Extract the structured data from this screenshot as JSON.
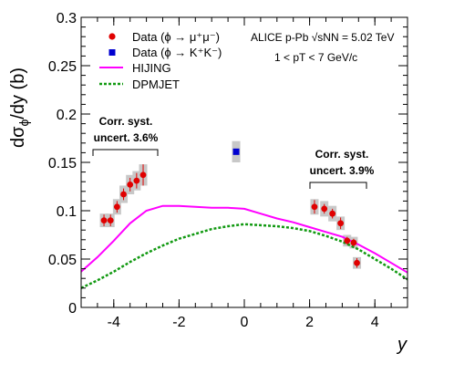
{
  "chart_data": {
    "type": "scatter",
    "ylabel_parts": {
      "main": "dσ",
      "sub": "ϕ",
      "tail": "/dy (b)"
    },
    "xlabel": "y",
    "xlim": [
      -5,
      5
    ],
    "ylim": [
      0,
      0.3
    ],
    "x_ticks": [
      -4,
      -2,
      0,
      2,
      4
    ],
    "x_tick_labels": [
      "-4",
      "-2",
      "0",
      "2",
      "4"
    ],
    "y_ticks": [
      0,
      0.05,
      0.1,
      0.15,
      0.2,
      0.25,
      0.3
    ],
    "y_tick_labels": [
      "0",
      "0.05",
      "0.1",
      "0.15",
      "0.2",
      "0.25",
      "0.3"
    ],
    "grid": false,
    "legend_position": "top-left",
    "info_text": {
      "line1": "ALICE p-Pb √sNN = 5.02 TeV",
      "line2": "1 < pT < 7 GeV/c"
    },
    "annotations": [
      {
        "line1": "Corr. syst.",
        "line2": "uncert. 3.6%",
        "x_range": [
          -4.6,
          -2.9
        ]
      },
      {
        "line1": "Corr. syst.",
        "line2": "uncert. 3.9%",
        "x_range": [
          2.0,
          3.7
        ]
      }
    ],
    "series": [
      {
        "name": "Data (ϕ → μ⁺μ⁻)",
        "kind": "points",
        "marker": "circle",
        "color": "#e00000",
        "x": [
          -4.3,
          -4.1,
          -3.9,
          -3.7,
          -3.5,
          -3.3,
          -3.1,
          2.15,
          2.45,
          2.7,
          2.95,
          3.15,
          3.35,
          3.45
        ],
        "y": [
          0.09,
          0.09,
          0.104,
          0.117,
          0.127,
          0.131,
          0.137,
          0.104,
          0.102,
          0.097,
          0.087,
          0.069,
          0.067,
          0.046
        ],
        "stat_err": [
          0.006,
          0.006,
          0.006,
          0.006,
          0.007,
          0.008,
          0.011,
          0.007,
          0.005,
          0.005,
          0.006,
          0.004,
          0.004,
          0.005
        ],
        "syst_err": [
          0.007,
          0.007,
          0.008,
          0.009,
          0.01,
          0.01,
          0.011,
          0.008,
          0.008,
          0.008,
          0.007,
          0.006,
          0.006,
          0.006
        ]
      },
      {
        "name": "Data (ϕ → K⁺K⁻)",
        "kind": "points",
        "marker": "square",
        "color": "#0000d0",
        "x": [
          -0.25
        ],
        "y": [
          0.161
        ],
        "stat_err": [
          0.002
        ],
        "syst_err": [
          0.011
        ]
      },
      {
        "name": "HIJING",
        "kind": "line",
        "style": "solid",
        "color": "#ff00ff",
        "x": [
          -5,
          -4.5,
          -4,
          -3.5,
          -3,
          -2.5,
          -2,
          -1.5,
          -1,
          -0.5,
          0,
          0.5,
          1,
          1.5,
          2,
          2.5,
          3,
          3.5,
          4,
          4.5,
          5
        ],
        "y": [
          0.037,
          0.052,
          0.069,
          0.087,
          0.1,
          0.105,
          0.105,
          0.104,
          0.103,
          0.103,
          0.102,
          0.097,
          0.092,
          0.088,
          0.083,
          0.078,
          0.073,
          0.065,
          0.056,
          0.046,
          0.036
        ]
      },
      {
        "name": "DPMJET",
        "kind": "line",
        "style": "dashed",
        "color": "#119911",
        "x": [
          -5,
          -4.5,
          -4,
          -3.5,
          -3,
          -2.5,
          -2,
          -1.5,
          -1,
          -0.5,
          0,
          0.5,
          1,
          1.5,
          2,
          2.5,
          3,
          3.5,
          4,
          4.5,
          5
        ],
        "y": [
          0.02,
          0.028,
          0.037,
          0.047,
          0.056,
          0.064,
          0.071,
          0.076,
          0.081,
          0.084,
          0.086,
          0.085,
          0.084,
          0.082,
          0.079,
          0.074,
          0.068,
          0.06,
          0.05,
          0.04,
          0.029
        ]
      }
    ]
  }
}
